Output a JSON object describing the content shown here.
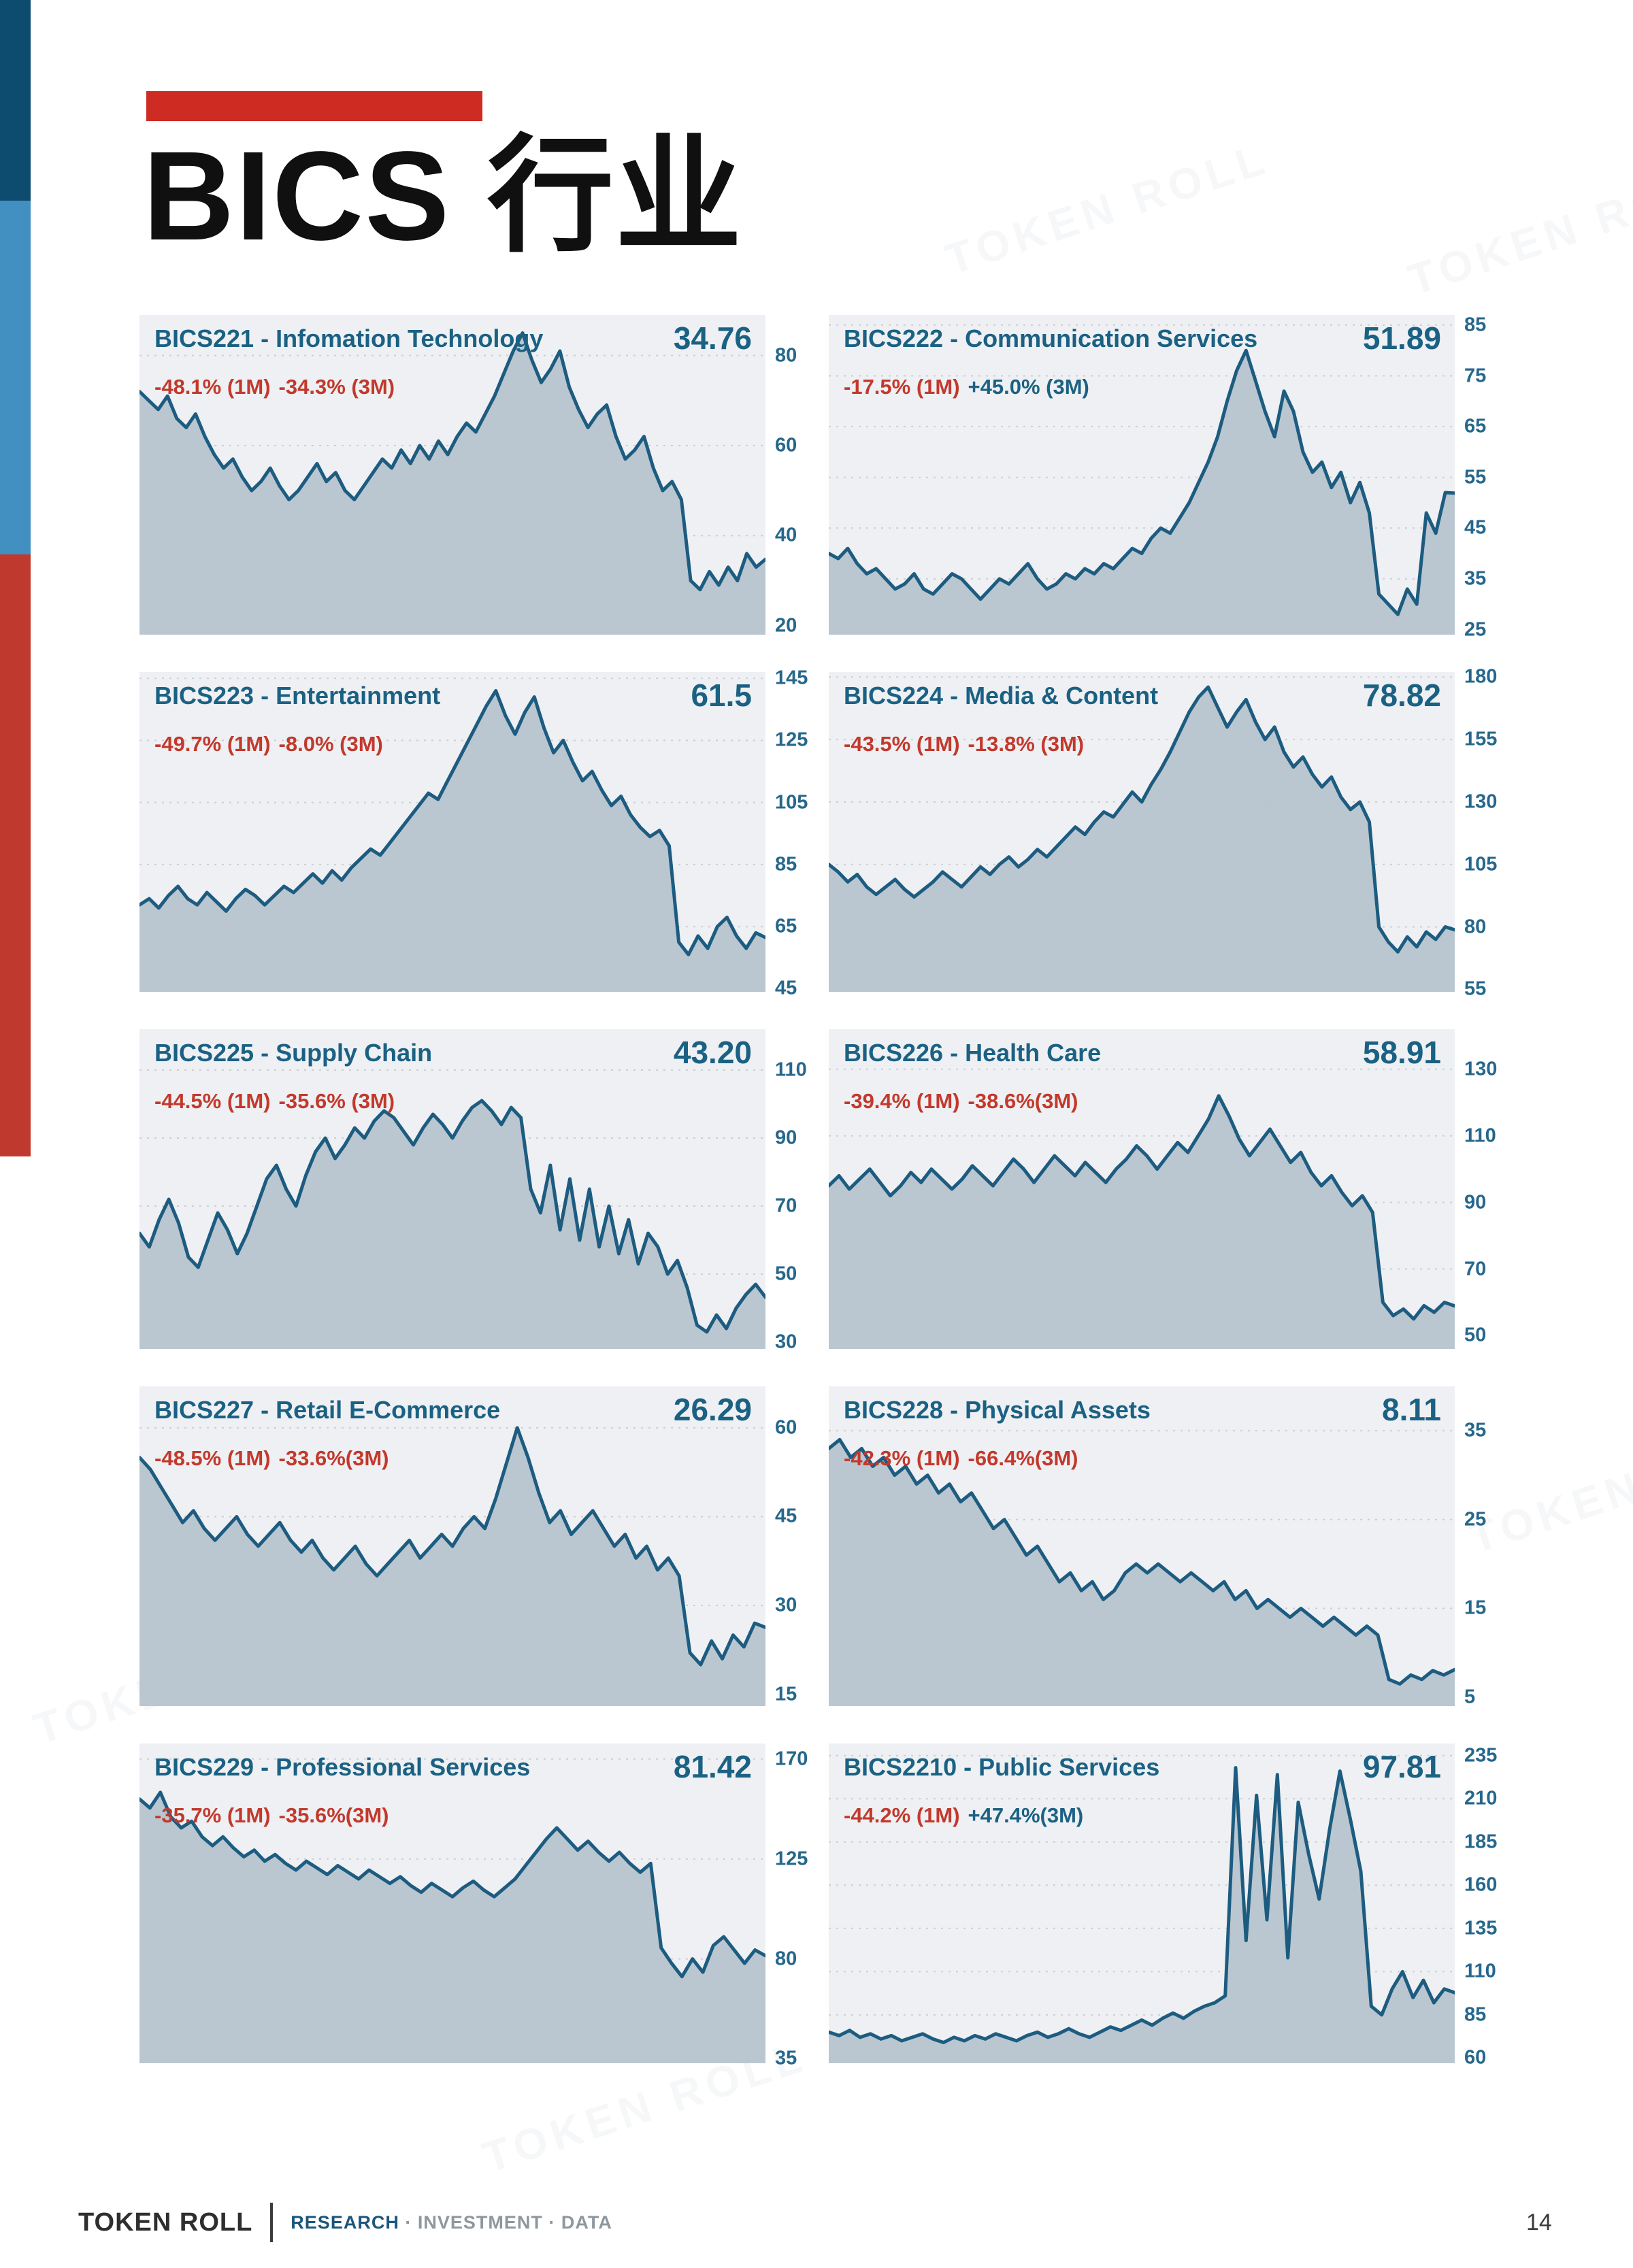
{
  "page": {
    "title": "BICS 行业",
    "page_number": "14"
  },
  "footer": {
    "brand": "TOKEN ROLL",
    "tagline_primary": "RESEARCH",
    "tagline_rest": "· INVESTMENT · DATA"
  },
  "watermark": {
    "text": "TOKEN ROLL"
  },
  "colors": {
    "accent_red": "#ce2b22",
    "sidebar_navy": "#0d4c6e",
    "sidebar_blue": "#428fc1",
    "sidebar_red": "#c0392e",
    "chart_line": "#1d5c80",
    "chart_fill": "#b6c4cd",
    "chart_bg": "#eef0f3",
    "title_blue": "#1b6183",
    "change_red": "#c2392c",
    "tick_blue": "#26678c"
  },
  "chart_data": [
    {
      "type": "area",
      "title": "BICS221 - Infomation Technology",
      "value": "34.76",
      "change_1m": "-48.1% (1M)",
      "change_3m": "-34.3% (3M)",
      "change_3m_color": "red",
      "yticks": [
        80,
        60,
        40,
        20
      ],
      "ylim": [
        18,
        89
      ],
      "series": [
        72,
        70,
        68,
        71,
        66,
        64,
        67,
        62,
        58,
        55,
        57,
        53,
        50,
        52,
        55,
        51,
        48,
        50,
        53,
        56,
        52,
        54,
        50,
        48,
        51,
        54,
        57,
        55,
        59,
        56,
        60,
        57,
        61,
        58,
        62,
        65,
        63,
        67,
        71,
        76,
        81,
        85,
        79,
        74,
        77,
        81,
        73,
        68,
        64,
        67,
        69,
        62,
        57,
        59,
        62,
        55,
        50,
        52,
        48,
        30,
        28,
        32,
        29,
        33,
        30,
        36,
        33,
        34.76
      ]
    },
    {
      "type": "area",
      "title": "BICS222 - Communication Services",
      "value": "51.89",
      "change_1m": "-17.5% (1M)",
      "change_3m": "+45.0% (3M)",
      "change_3m_color": "blue",
      "yticks": [
        85,
        75,
        65,
        55,
        45,
        35,
        25
      ],
      "ylim": [
        24,
        87
      ],
      "series": [
        40,
        39,
        41,
        38,
        36,
        37,
        35,
        33,
        34,
        36,
        33,
        32,
        34,
        36,
        35,
        33,
        31,
        33,
        35,
        34,
        36,
        38,
        35,
        33,
        34,
        36,
        35,
        37,
        36,
        38,
        37,
        39,
        41,
        40,
        43,
        45,
        44,
        47,
        50,
        54,
        58,
        63,
        70,
        76,
        80,
        74,
        68,
        63,
        72,
        68,
        60,
        56,
        58,
        53,
        56,
        50,
        54,
        48,
        32,
        30,
        28,
        33,
        30,
        48,
        44,
        52,
        51.89
      ]
    },
    {
      "type": "area",
      "title": "BICS223 - Entertainment",
      "value": "61.5",
      "change_1m": "-49.7% (1M)",
      "change_3m": "-8.0% (3M)",
      "change_3m_color": "red",
      "yticks": [
        145,
        125,
        105,
        85,
        65,
        45
      ],
      "ylim": [
        44,
        147
      ],
      "series": [
        72,
        74,
        71,
        75,
        78,
        74,
        72,
        76,
        73,
        70,
        74,
        77,
        75,
        72,
        75,
        78,
        76,
        79,
        82,
        79,
        83,
        80,
        84,
        87,
        90,
        88,
        92,
        96,
        100,
        104,
        108,
        106,
        112,
        118,
        124,
        130,
        136,
        141,
        133,
        127,
        134,
        139,
        129,
        121,
        125,
        118,
        112,
        115,
        109,
        104,
        107,
        101,
        97,
        94,
        96,
        91,
        60,
        56,
        62,
        58,
        65,
        68,
        62,
        58,
        63,
        61.5
      ]
    },
    {
      "type": "area",
      "title": "BICS224 - Media & Content",
      "value": "78.82",
      "change_1m": "-43.5% (1M)",
      "change_3m": "-13.8% (3M)",
      "change_3m_color": "red",
      "yticks": [
        180,
        155,
        130,
        105,
        80,
        55
      ],
      "ylim": [
        54,
        182
      ],
      "series": [
        105,
        102,
        98,
        101,
        96,
        93,
        96,
        99,
        95,
        92,
        95,
        98,
        102,
        99,
        96,
        100,
        104,
        101,
        105,
        108,
        104,
        107,
        111,
        108,
        112,
        116,
        120,
        117,
        122,
        126,
        124,
        129,
        134,
        130,
        137,
        143,
        150,
        158,
        166,
        172,
        176,
        168,
        160,
        166,
        171,
        162,
        155,
        160,
        150,
        144,
        148,
        141,
        136,
        140,
        132,
        127,
        130,
        122,
        80,
        74,
        70,
        76,
        72,
        78,
        75,
        80,
        78.82
      ]
    },
    {
      "type": "area",
      "title": "BICS225 - Supply Chain",
      "value": "43.20",
      "change_1m": "-44.5% (1M)",
      "change_3m": "-35.6% (3M)",
      "change_3m_color": "red",
      "yticks": [
        110,
        90,
        70,
        50,
        30
      ],
      "ylim": [
        28,
        122
      ],
      "series": [
        62,
        58,
        66,
        72,
        65,
        55,
        52,
        60,
        68,
        63,
        56,
        62,
        70,
        78,
        82,
        75,
        70,
        79,
        86,
        90,
        84,
        88,
        93,
        90,
        95,
        98,
        96,
        92,
        88,
        93,
        97,
        94,
        90,
        95,
        99,
        101,
        98,
        94,
        99,
        96,
        75,
        68,
        82,
        63,
        78,
        60,
        75,
        58,
        70,
        56,
        66,
        53,
        62,
        58,
        50,
        54,
        46,
        35,
        33,
        38,
        34,
        40,
        44,
        47,
        43.2
      ]
    },
    {
      "type": "area",
      "title": "BICS226 - Health Care",
      "value": "58.91",
      "change_1m": "-39.4% (1M)",
      "change_3m": "-38.6%(3M)",
      "change_3m_color": "red",
      "yticks": [
        130,
        110,
        90,
        70,
        50
      ],
      "ylim": [
        46,
        142
      ],
      "series": [
        95,
        98,
        94,
        97,
        100,
        96,
        92,
        95,
        99,
        96,
        100,
        97,
        94,
        97,
        101,
        98,
        95,
        99,
        103,
        100,
        96,
        100,
        104,
        101,
        98,
        102,
        99,
        96,
        100,
        103,
        107,
        104,
        100,
        104,
        108,
        105,
        110,
        115,
        122,
        116,
        109,
        104,
        108,
        112,
        107,
        102,
        105,
        99,
        95,
        98,
        93,
        89,
        92,
        87,
        60,
        56,
        58,
        55,
        59,
        57,
        60,
        58.91
      ]
    },
    {
      "type": "area",
      "title": "BICS227 - Retail E-Commerce",
      "value": "26.29",
      "change_1m": "-48.5% (1M)",
      "change_3m": "-33.6%(3M)",
      "change_3m_color": "red",
      "yticks": [
        60,
        45,
        30,
        15
      ],
      "ylim": [
        13,
        67
      ],
      "series": [
        55,
        53,
        50,
        47,
        44,
        46,
        43,
        41,
        43,
        45,
        42,
        40,
        42,
        44,
        41,
        39,
        41,
        38,
        36,
        38,
        40,
        37,
        35,
        37,
        39,
        41,
        38,
        40,
        42,
        40,
        43,
        45,
        43,
        48,
        54,
        60,
        55,
        49,
        44,
        46,
        42,
        44,
        46,
        43,
        40,
        42,
        38,
        40,
        36,
        38,
        35,
        22,
        20,
        24,
        21,
        25,
        23,
        27,
        26.29
      ]
    },
    {
      "type": "area",
      "title": "BICS228 - Physical Assets",
      "value": "8.11",
      "change_1m": "-42.3% (1M)",
      "change_3m": "-66.4%(3M)",
      "change_3m_color": "red",
      "yticks": [
        35,
        25,
        15,
        5
      ],
      "ylim": [
        4,
        40
      ],
      "series": [
        33,
        34,
        32,
        33,
        31,
        32,
        30,
        31,
        29,
        30,
        28,
        29,
        27,
        28,
        26,
        24,
        25,
        23,
        21,
        22,
        20,
        18,
        19,
        17,
        18,
        16,
        17,
        19,
        20,
        19,
        20,
        19,
        18,
        19,
        18,
        17,
        18,
        16,
        17,
        15,
        16,
        15,
        14,
        15,
        14,
        13,
        14,
        13,
        12,
        13,
        12,
        7,
        6.5,
        7.5,
        7,
        8,
        7.5,
        8.11
      ]
    },
    {
      "type": "area",
      "title": "BICS229 - Professional Services",
      "value": "81.42",
      "change_1m": "-35.7% (1M)",
      "change_3m": "-35.6%(3M)",
      "change_3m_color": "red",
      "yticks": [
        170,
        125,
        80,
        35
      ],
      "ylim": [
        33,
        177
      ],
      "series": [
        152,
        148,
        155,
        144,
        139,
        142,
        135,
        131,
        135,
        130,
        126,
        129,
        124,
        127,
        123,
        120,
        124,
        121,
        118,
        122,
        119,
        116,
        120,
        117,
        114,
        117,
        113,
        110,
        114,
        111,
        108,
        112,
        115,
        111,
        108,
        112,
        116,
        122,
        128,
        134,
        139,
        134,
        129,
        133,
        128,
        124,
        128,
        123,
        119,
        123,
        85,
        78,
        72,
        80,
        74,
        86,
        90,
        84,
        78,
        84,
        81.42
      ]
    },
    {
      "type": "area",
      "title": "BICS2210 - Public Services",
      "value": "97.81",
      "change_1m": "-44.2% (1M)",
      "change_3m": "+47.4%(3M)",
      "change_3m_color": "blue",
      "yticks": [
        235,
        210,
        185,
        160,
        135,
        110,
        85,
        60
      ],
      "ylim": [
        57,
        242
      ],
      "series": [
        75,
        73,
        76,
        72,
        74,
        71,
        73,
        70,
        72,
        74,
        71,
        69,
        72,
        70,
        73,
        71,
        74,
        72,
        70,
        73,
        75,
        72,
        74,
        77,
        74,
        72,
        75,
        78,
        76,
        79,
        82,
        79,
        83,
        86,
        83,
        87,
        90,
        92,
        96,
        228,
        128,
        212,
        140,
        224,
        118,
        208,
        178,
        152,
        192,
        226,
        198,
        168,
        90,
        85,
        100,
        110,
        95,
        105,
        92,
        100,
        97.81
      ]
    }
  ]
}
